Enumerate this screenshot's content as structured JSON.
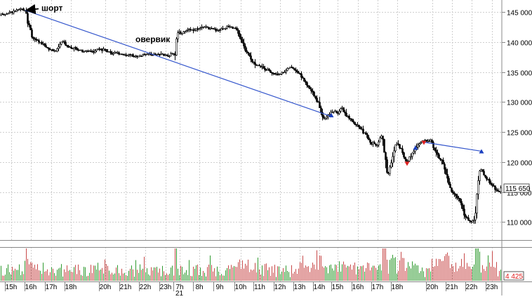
{
  "chart_data": [
    {
      "type": "candlestick",
      "panel": "price",
      "ylim": [
        107000,
        147000
      ],
      "y_ticks": [
        {
          "value": 145000,
          "label": "145 000"
        },
        {
          "value": 140000,
          "label": "140 000"
        },
        {
          "value": 135000,
          "label": "135 000"
        },
        {
          "value": 130000,
          "label": "130 000"
        },
        {
          "value": 125000,
          "label": "125 000"
        },
        {
          "value": 120000,
          "label": "120 000"
        },
        {
          "value": 115000,
          "label": "115 000"
        },
        {
          "value": 110000,
          "label": "110 000"
        }
      ],
      "last_price": {
        "value": 115650,
        "label": "115 650"
      },
      "grid": true,
      "price_path": [
        [
          0,
          144500
        ],
        [
          10,
          144800
        ],
        [
          20,
          145100
        ],
        [
          30,
          145500
        ],
        [
          36,
          145300
        ],
        [
          38,
          143500
        ],
        [
          42,
          142300
        ],
        [
          45,
          140800
        ],
        [
          52,
          140200
        ],
        [
          60,
          139700
        ],
        [
          70,
          138700
        ],
        [
          80,
          138500
        ],
        [
          88,
          140200
        ],
        [
          96,
          139300
        ],
        [
          104,
          139000
        ],
        [
          112,
          138800
        ],
        [
          118,
          138300
        ],
        [
          124,
          138600
        ],
        [
          132,
          138400
        ],
        [
          140,
          138900
        ],
        [
          146,
          138700
        ],
        [
          152,
          138400
        ],
        [
          160,
          138000
        ],
        [
          168,
          138200
        ],
        [
          176,
          137900
        ],
        [
          184,
          137800
        ],
        [
          192,
          137600
        ],
        [
          200,
          137700
        ],
        [
          208,
          138100
        ],
        [
          216,
          137900
        ],
        [
          224,
          138000
        ],
        [
          232,
          137800
        ],
        [
          240,
          137700
        ],
        [
          246,
          138100
        ],
        [
          249,
          138000
        ],
        [
          252,
          141800
        ],
        [
          258,
          141500
        ],
        [
          266,
          141900
        ],
        [
          274,
          142000
        ],
        [
          282,
          142200
        ],
        [
          290,
          142600
        ],
        [
          300,
          142200
        ],
        [
          310,
          142000
        ],
        [
          318,
          142300
        ],
        [
          326,
          142700
        ],
        [
          334,
          142300
        ],
        [
          340,
          141200
        ],
        [
          344,
          140100
        ],
        [
          348,
          138900
        ],
        [
          352,
          138100
        ],
        [
          358,
          137000
        ],
        [
          364,
          136300
        ],
        [
          370,
          135900
        ],
        [
          376,
          135600
        ],
        [
          382,
          135200
        ],
        [
          388,
          134800
        ],
        [
          394,
          134600
        ],
        [
          400,
          134800
        ],
        [
          406,
          135200
        ],
        [
          412,
          135800
        ],
        [
          418,
          135600
        ],
        [
          424,
          135000
        ],
        [
          430,
          134200
        ],
        [
          436,
          132900
        ],
        [
          442,
          132000
        ],
        [
          448,
          130900
        ],
        [
          454,
          129600
        ],
        [
          458,
          128000
        ],
        [
          462,
          127300
        ],
        [
          468,
          127900
        ],
        [
          474,
          128600
        ],
        [
          480,
          128100
        ],
        [
          486,
          129200
        ],
        [
          490,
          128400
        ],
        [
          494,
          127500
        ],
        [
          500,
          126900
        ],
        [
          506,
          126200
        ],
        [
          512,
          125700
        ],
        [
          518,
          124900
        ],
        [
          524,
          124000
        ],
        [
          528,
          122900
        ],
        [
          532,
          123200
        ],
        [
          536,
          122700
        ],
        [
          540,
          123900
        ],
        [
          544,
          124500
        ],
        [
          548,
          121000
        ],
        [
          552,
          117800
        ],
        [
          556,
          119400
        ],
        [
          560,
          121100
        ],
        [
          564,
          123200
        ],
        [
          568,
          122700
        ],
        [
          572,
          121800
        ],
        [
          576,
          120700
        ],
        [
          580,
          120000
        ],
        [
          586,
          121400
        ],
        [
          592,
          122500
        ],
        [
          598,
          123300
        ],
        [
          604,
          123600
        ],
        [
          610,
          123300
        ],
        [
          614,
          123800
        ],
        [
          618,
          122300
        ],
        [
          624,
          121000
        ],
        [
          630,
          119800
        ],
        [
          636,
          117800
        ],
        [
          640,
          115900
        ],
        [
          646,
          114700
        ],
        [
          652,
          114100
        ],
        [
          658,
          112400
        ],
        [
          662,
          111000
        ],
        [
          666,
          110500
        ],
        [
          670,
          109900
        ],
        [
          676,
          110600
        ],
        [
          680,
          115900
        ],
        [
          684,
          119000
        ],
        [
          688,
          118000
        ],
        [
          694,
          117100
        ],
        [
          700,
          116300
        ],
        [
          706,
          115400
        ],
        [
          710,
          115000
        ],
        [
          714,
          115650
        ]
      ],
      "volume_panel": {
        "value": 4425,
        "label": "4 425"
      },
      "x_ticks": [
        {
          "x": 16,
          "label": "15h"
        },
        {
          "x": 44,
          "label": "16h"
        },
        {
          "x": 73,
          "label": "17h"
        },
        {
          "x": 101,
          "label": "18h"
        },
        {
          "x": 150,
          "label": "20h"
        },
        {
          "x": 179,
          "label": "21h"
        },
        {
          "x": 207,
          "label": "22h"
        },
        {
          "x": 236,
          "label": "23h"
        },
        {
          "x": 256,
          "label": "7h"
        },
        {
          "x": 284,
          "label": "8h"
        },
        {
          "x": 313,
          "label": "9h"
        },
        {
          "x": 343,
          "label": "10h"
        },
        {
          "x": 370,
          "label": "11h"
        },
        {
          "x": 399,
          "label": "12h"
        },
        {
          "x": 427,
          "label": "13h"
        },
        {
          "x": 455,
          "label": "14h"
        },
        {
          "x": 481,
          "label": "15h"
        },
        {
          "x": 510,
          "label": "16h"
        },
        {
          "x": 538,
          "label": "17h"
        },
        {
          "x": 566,
          "label": "18h"
        },
        {
          "x": 616,
          "label": "20h"
        },
        {
          "x": 644,
          "label": "21h"
        },
        {
          "x": 672,
          "label": "22h"
        },
        {
          "x": 701,
          "label": "23h"
        }
      ],
      "date_label": {
        "x": 256,
        "label": "21"
      },
      "annotations": [
        {
          "text": "шорт",
          "x": 37,
          "price": 145300
        },
        {
          "text": "овервик",
          "x": 205,
          "price": 138200
        }
      ],
      "trend_lines": [
        {
          "from": [
            36,
            145300
          ],
          "to": [
            472,
            127600
          ]
        },
        {
          "from": [
            604,
            123300
          ],
          "to": [
            686,
            121800
          ]
        }
      ],
      "markers": [
        {
          "x": 472,
          "price": 127800,
          "color": "blue",
          "shape": "up"
        },
        {
          "x": 580,
          "price": 119700,
          "color": "red",
          "shape": "down"
        },
        {
          "x": 592,
          "price": 122400,
          "color": "blue",
          "shape": "up"
        },
        {
          "x": 604,
          "price": 123200,
          "color": "red",
          "shape": "down"
        },
        {
          "x": 686,
          "price": 121800,
          "color": "blue",
          "shape": "up"
        }
      ]
    }
  ]
}
